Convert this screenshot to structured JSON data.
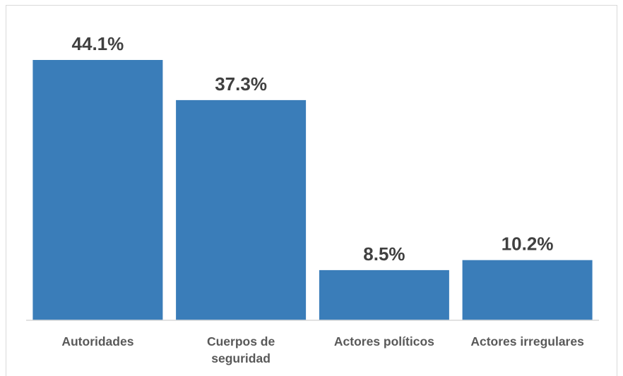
{
  "chart_data": {
    "type": "bar",
    "categories": [
      [
        "Autoridades"
      ],
      [
        "Cuerpos de",
        "seguridad"
      ],
      [
        "Actores políticos"
      ],
      [
        "Actores irregulares"
      ]
    ],
    "values": [
      44.1,
      37.3,
      8.5,
      10.2
    ],
    "data_labels": [
      "44.1%",
      "37.3%",
      "8.5%",
      "10.2%"
    ],
    "title": "",
    "xlabel": "",
    "ylabel": "",
    "ylim": [
      0,
      44.1
    ],
    "grid": false,
    "legend": "none",
    "colors": {
      "bar": "#3a7db9",
      "axis": "#d9d9d9",
      "data_label": "#404040",
      "category_label": "#595959"
    }
  }
}
